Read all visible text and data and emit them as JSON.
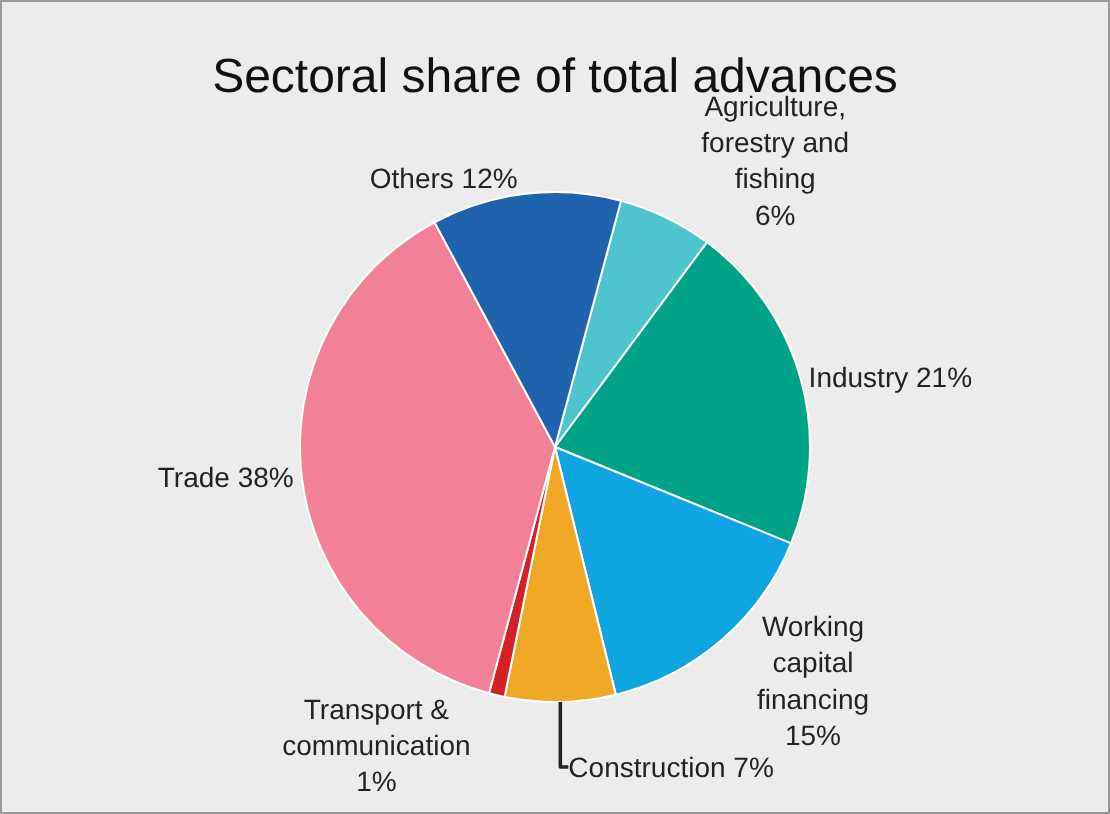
{
  "chart_data": {
    "type": "pie",
    "title": "Sectoral share of total advances",
    "categories": [
      "Agriculture, forestry and fishing",
      "Industry",
      "Working capital financing",
      "Construction",
      "Transport & communication",
      "Trade",
      "Others"
    ],
    "values": [
      6,
      21,
      15,
      7,
      1,
      38,
      12
    ],
    "value_labels": [
      "6%",
      "21%",
      "15%",
      "7%",
      "1%",
      "38%",
      "12%"
    ],
    "colors": [
      "#4fc4cf",
      "#00a388",
      "#0ea5e0",
      "#f0a827",
      "#d42027",
      "#f28096",
      "#1f62ad"
    ],
    "legend": false
  }
}
